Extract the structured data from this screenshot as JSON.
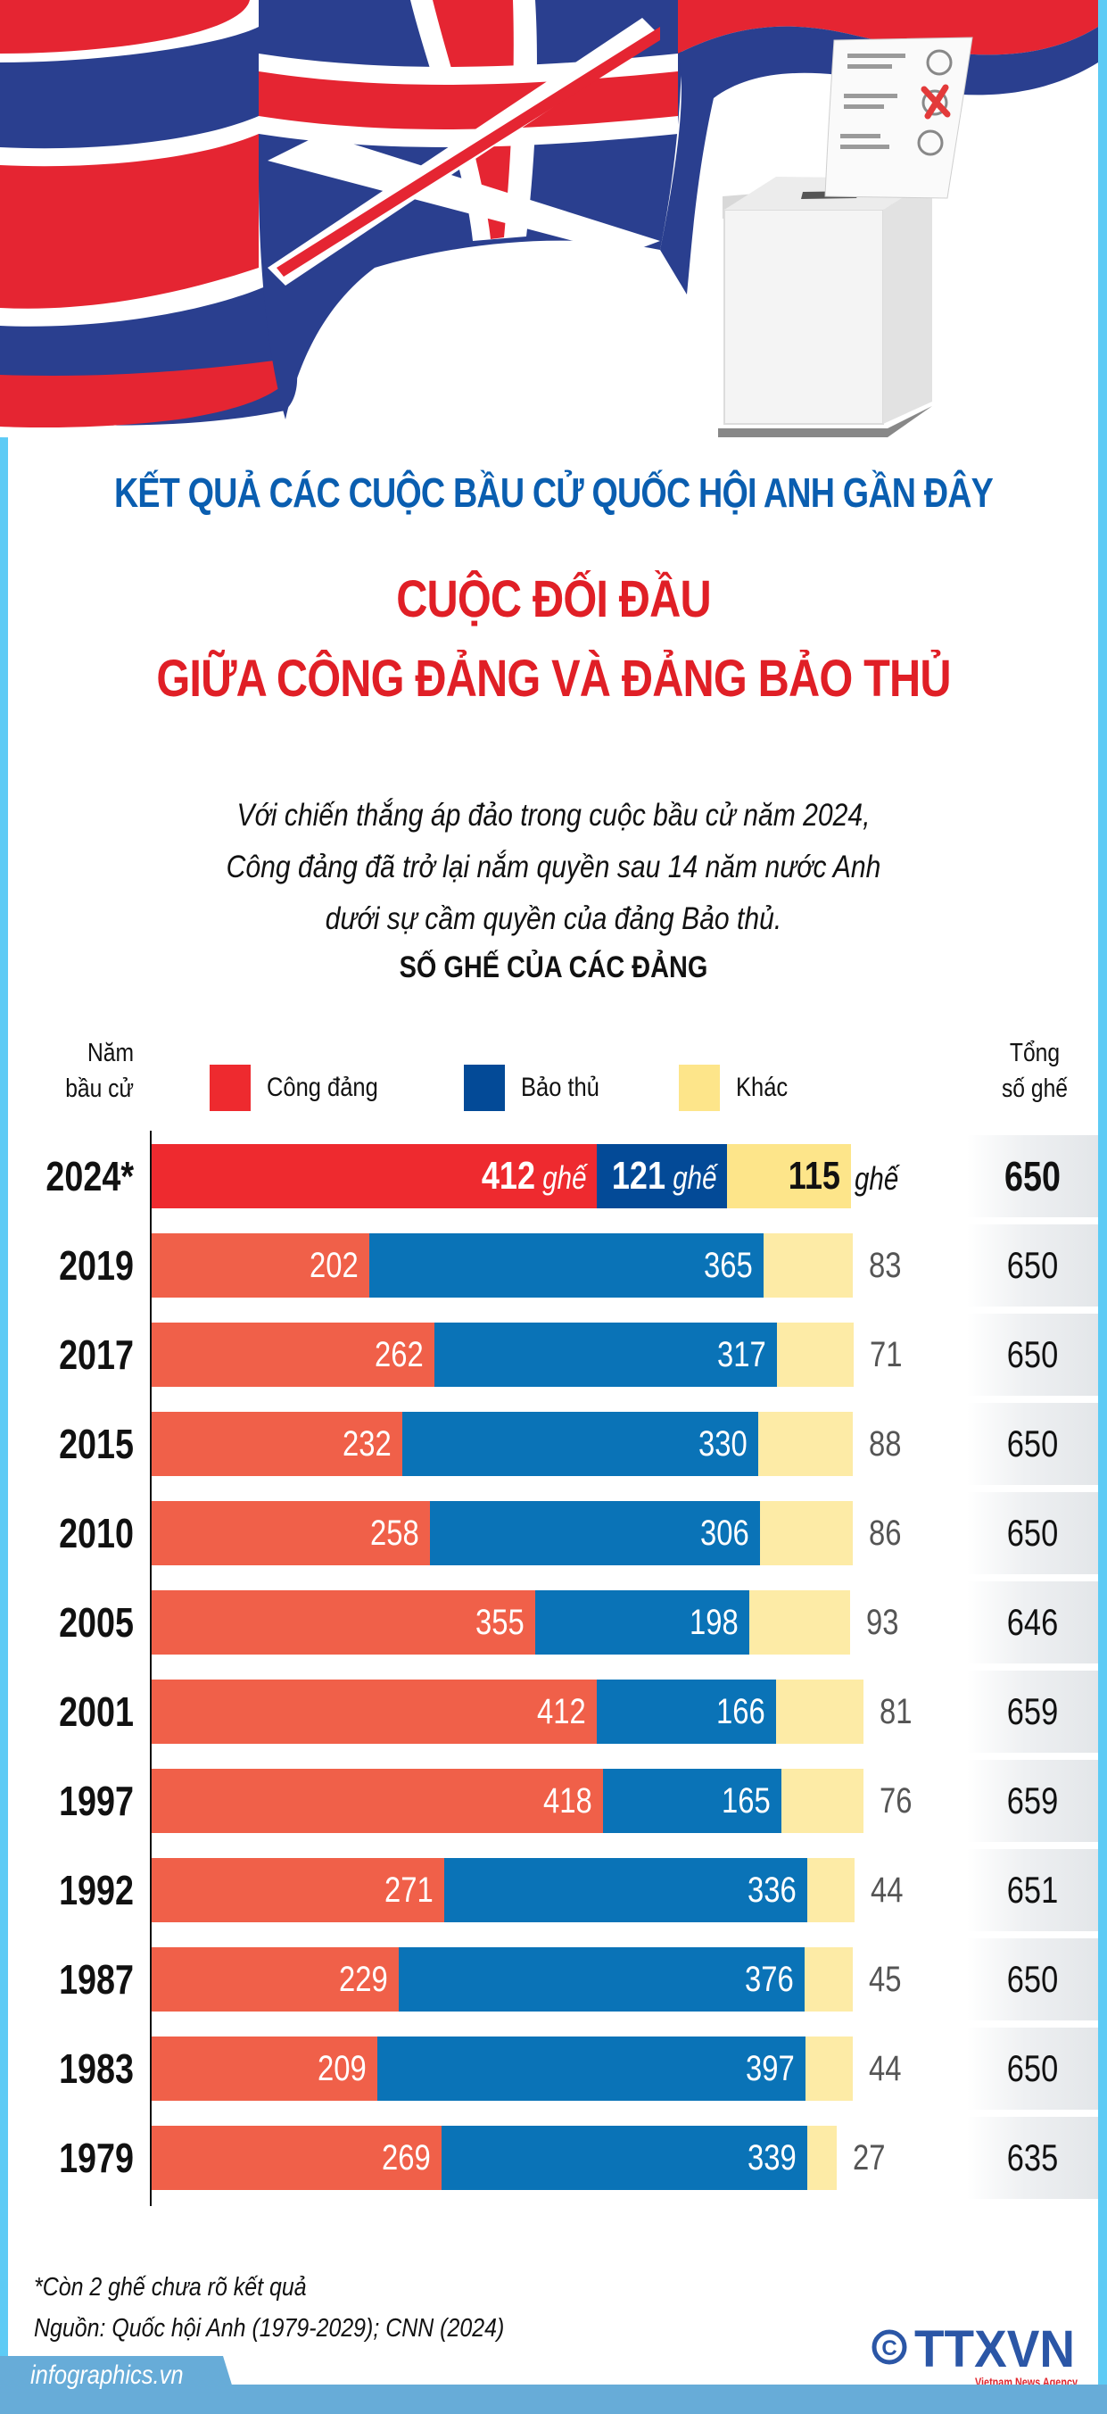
{
  "header": {
    "title": "KẾT QUẢ CÁC CUỘC BẦU CỬ QUỐC HỘI ANH GẦN ĐÂY",
    "headline_line1": "CUỘC ĐỐI ĐẦU",
    "headline_line2": "GIỮA CÔNG ĐẢNG VÀ ĐẢNG BẢO THỦ",
    "illustration": {
      "flag": "union-jack-flag",
      "ballot": "ballot-box-icon"
    }
  },
  "intro": {
    "line1": "Với chiến thắng áp đảo trong cuộc bầu cử năm 2024,",
    "line2": "Công đảng đã trở lại nắm quyền sau 14 năm nước Anh",
    "line3": "dưới sự cầm quyền của đảng Bảo thủ."
  },
  "colors": {
    "labour_2024": "#ee2a2f",
    "conservative_2024": "#034a97",
    "other_2024": "#fde58a",
    "labour": "#f06049",
    "conservative": "#0a73b7",
    "other": "#fdeba6",
    "title_blue": "#0a5eb0",
    "title_red": "#e01f26",
    "frame": "#5ecbf5"
  },
  "chart_data": {
    "type": "bar",
    "stacked": true,
    "orientation": "horizontal",
    "title": "SỐ GHẾ CỦA CÁC ĐẢNG",
    "ylabel": "Năm bầu cử",
    "total_label": "Tổng số ghế",
    "unit": "ghế",
    "categories": [
      "2024*",
      "2019",
      "2017",
      "2015",
      "2010",
      "2005",
      "2001",
      "1997",
      "1992",
      "1987",
      "1983",
      "1979"
    ],
    "series": [
      {
        "name": "Công đảng",
        "values": [
          412,
          202,
          262,
          232,
          258,
          355,
          412,
          418,
          271,
          229,
          209,
          269
        ]
      },
      {
        "name": "Bảo thủ",
        "values": [
          121,
          365,
          317,
          330,
          306,
          198,
          166,
          165,
          336,
          376,
          397,
          339
        ]
      },
      {
        "name": "Khác",
        "values": [
          115,
          83,
          71,
          88,
          86,
          93,
          81,
          76,
          44,
          45,
          44,
          27
        ]
      }
    ],
    "totals": [
      650,
      650,
      650,
      650,
      650,
      646,
      659,
      659,
      651,
      650,
      650,
      635
    ],
    "legend_position": "top",
    "grid": false
  },
  "chart": {
    "title": "SỐ GHẾ CỦA CÁC ĐẢNG",
    "year_header_line1": "Năm",
    "year_header_line2": "bầu cử",
    "total_header_line1": "Tổng",
    "total_header_line2": "số ghế",
    "unit": "ghế",
    "legend": [
      {
        "label": "Công đảng",
        "color": "#ee2a2f"
      },
      {
        "label": "Bảo thủ",
        "color": "#034a97"
      },
      {
        "label": "Khác",
        "color": "#fde58a"
      }
    ]
  },
  "footer": {
    "note": "*Còn 2 ghế chưa rõ kết quả",
    "source": "Nguồn: Quốc hội Anh (1979-2029); CNN (2024)",
    "site": "infographics.vn",
    "logo_text": "TTXVN",
    "logo_subtext": "Vietnam News Agency",
    "copyright_symbol": "©"
  }
}
